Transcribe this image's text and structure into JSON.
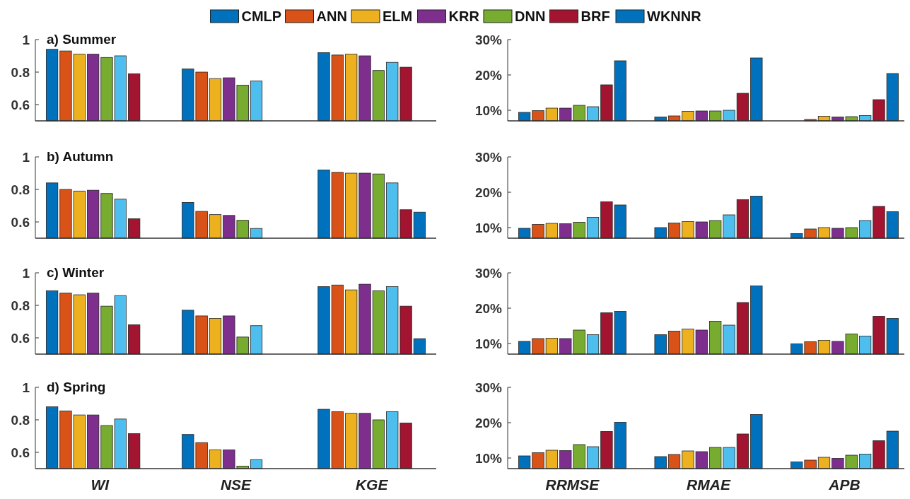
{
  "chart_data": [
    {
      "type": "bar",
      "title": "a) Summer",
      "categories": [
        null,
        null,
        null
      ],
      "ylim": [
        0.5,
        1
      ],
      "yticks": [
        0.6,
        0.8,
        1
      ],
      "legend": "top",
      "series": [
        {
          "name": "CMLP",
          "color": "#0072bd",
          "values": [
            0.94,
            0.82,
            0.92
          ]
        },
        {
          "name": "ANN",
          "color": "#d95319",
          "values": [
            0.93,
            0.8,
            0.905
          ]
        },
        {
          "name": "ELM",
          "color": "#edb120",
          "values": [
            0.91,
            0.76,
            0.91
          ]
        },
        {
          "name": "KRR",
          "color": "#7e2f8e",
          "values": [
            0.91,
            0.765,
            0.9
          ]
        },
        {
          "name": "DNN",
          "color": "#77ac30",
          "values": [
            0.89,
            0.72,
            0.81
          ]
        },
        {
          "color": "#4dbeee",
          "values": [
            0.9,
            0.745,
            0.86
          ]
        },
        {
          "name": "BRF",
          "color": "#a2142f",
          "values": [
            0.79,
            null,
            0.83
          ]
        },
        {
          "name": "WKNNR",
          "color": "#0072bd",
          "values": [
            null,
            null,
            null
          ]
        }
      ]
    },
    {
      "type": "bar",
      "categories": [
        null,
        null,
        null
      ],
      "ylim": [
        7,
        30
      ],
      "yticks": [
        {
          "value": 10,
          "label": "10%"
        },
        {
          "value": 20,
          "label": "20%"
        },
        {
          "value": 30,
          "label": "30%"
        }
      ],
      "series": [
        {
          "color": "#0072bd",
          "values": [
            9.4,
            8.1,
            null
          ]
        },
        {
          "color": "#d95319",
          "values": [
            9.9,
            8.4,
            7.4
          ]
        },
        {
          "color": "#edb120",
          "values": [
            10.6,
            9.7,
            8.3
          ]
        },
        {
          "color": "#7e2f8e",
          "values": [
            10.6,
            9.8,
            8.1
          ]
        },
        {
          "color": "#77ac30",
          "values": [
            11.4,
            9.8,
            8.2
          ]
        },
        {
          "color": "#4dbeee",
          "values": [
            11.0,
            10.0,
            8.5
          ]
        },
        {
          "color": "#a2142f",
          "values": [
            17.2,
            14.8,
            13.0
          ]
        },
        {
          "color": "#0072bd",
          "values": [
            24.0,
            24.8,
            20.4
          ]
        }
      ]
    },
    {
      "type": "bar",
      "title": "b) Autumn",
      "categories": [
        null,
        null,
        null
      ],
      "ylim": [
        0.5,
        1
      ],
      "yticks": [
        0.6,
        0.8,
        1
      ],
      "series": [
        {
          "color": "#0072bd",
          "values": [
            0.84,
            0.72,
            0.92
          ]
        },
        {
          "color": "#d95319",
          "values": [
            0.8,
            0.665,
            0.905
          ]
        },
        {
          "color": "#edb120",
          "values": [
            0.79,
            0.645,
            0.9
          ]
        },
        {
          "color": "#7e2f8e",
          "values": [
            0.795,
            0.64,
            0.9
          ]
        },
        {
          "color": "#77ac30",
          "values": [
            0.775,
            0.61,
            0.895
          ]
        },
        {
          "color": "#4dbeee",
          "values": [
            0.74,
            0.56,
            0.84
          ]
        },
        {
          "color": "#a2142f",
          "values": [
            0.62,
            null,
            0.675
          ]
        },
        {
          "color": "#0072bd",
          "values": [
            null,
            null,
            0.66
          ]
        }
      ]
    },
    {
      "type": "bar",
      "categories": [
        null,
        null,
        null
      ],
      "ylim": [
        7,
        30
      ],
      "yticks": [
        {
          "value": 10,
          "label": "10%"
        },
        {
          "value": 20,
          "label": "20%"
        },
        {
          "value": 30,
          "label": "30%"
        }
      ],
      "series": [
        {
          "color": "#0072bd",
          "values": [
            9.8,
            10.0,
            8.3
          ]
        },
        {
          "color": "#d95319",
          "values": [
            10.9,
            11.3,
            9.6
          ]
        },
        {
          "color": "#edb120",
          "values": [
            11.2,
            11.7,
            10.0
          ]
        },
        {
          "color": "#7e2f8e",
          "values": [
            11.1,
            11.6,
            9.8
          ]
        },
        {
          "color": "#77ac30",
          "values": [
            11.5,
            12.0,
            10.0
          ]
        },
        {
          "color": "#4dbeee",
          "values": [
            12.9,
            13.6,
            12.0
          ]
        },
        {
          "color": "#a2142f",
          "values": [
            17.3,
            17.9,
            16.0
          ]
        },
        {
          "color": "#0072bd",
          "values": [
            16.4,
            18.9,
            14.5
          ]
        }
      ]
    },
    {
      "type": "bar",
      "title": "c) Winter",
      "categories": [
        null,
        null,
        null
      ],
      "ylim": [
        0.5,
        1
      ],
      "yticks": [
        0.6,
        0.8,
        1
      ],
      "series": [
        {
          "color": "#0072bd",
          "values": [
            0.89,
            0.77,
            0.915
          ]
        },
        {
          "color": "#d95319",
          "values": [
            0.875,
            0.735,
            0.925
          ]
        },
        {
          "color": "#edb120",
          "values": [
            0.865,
            0.72,
            0.895
          ]
        },
        {
          "color": "#7e2f8e",
          "values": [
            0.875,
            0.735,
            0.93
          ]
        },
        {
          "color": "#77ac30",
          "values": [
            0.795,
            0.605,
            0.89
          ]
        },
        {
          "color": "#4dbeee",
          "values": [
            0.86,
            0.675,
            0.915
          ]
        },
        {
          "color": "#a2142f",
          "values": [
            0.68,
            null,
            0.795
          ]
        },
        {
          "color": "#0072bd",
          "values": [
            null,
            null,
            0.595
          ]
        }
      ]
    },
    {
      "type": "bar",
      "categories": [
        null,
        null,
        null
      ],
      "ylim": [
        7,
        30
      ],
      "yticks": [
        {
          "value": 10,
          "label": "10%"
        },
        {
          "value": 20,
          "label": "20%"
        },
        {
          "value": 30,
          "label": "30%"
        }
      ],
      "series": [
        {
          "color": "#0072bd",
          "values": [
            10.6,
            12.5,
            9.9
          ]
        },
        {
          "color": "#d95319",
          "values": [
            11.4,
            13.5,
            10.5
          ]
        },
        {
          "color": "#edb120",
          "values": [
            11.5,
            14.1,
            10.9
          ]
        },
        {
          "color": "#7e2f8e",
          "values": [
            11.4,
            13.8,
            10.6
          ]
        },
        {
          "color": "#77ac30",
          "values": [
            13.8,
            16.3,
            12.7
          ]
        },
        {
          "color": "#4dbeee",
          "values": [
            12.5,
            15.2,
            12.1
          ]
        },
        {
          "color": "#a2142f",
          "values": [
            18.7,
            21.6,
            17.7
          ]
        },
        {
          "color": "#0072bd",
          "values": [
            19.1,
            26.3,
            17.1
          ]
        }
      ]
    },
    {
      "type": "bar",
      "title": "d) Spring",
      "categories": [
        "WI",
        "NSE",
        "KGE"
      ],
      "ylim": [
        0.5,
        1
      ],
      "yticks": [
        0.6,
        0.8,
        1
      ],
      "series": [
        {
          "color": "#0072bd",
          "values": [
            0.88,
            0.71,
            0.865
          ]
        },
        {
          "color": "#d95319",
          "values": [
            0.855,
            0.66,
            0.85
          ]
        },
        {
          "color": "#edb120",
          "values": [
            0.83,
            0.615,
            0.84
          ]
        },
        {
          "color": "#7e2f8e",
          "values": [
            0.83,
            0.615,
            0.84
          ]
        },
        {
          "color": "#77ac30",
          "values": [
            0.765,
            0.515,
            0.8
          ]
        },
        {
          "color": "#4dbeee",
          "values": [
            0.805,
            0.555,
            0.85
          ]
        },
        {
          "color": "#a2142f",
          "values": [
            0.715,
            null,
            0.78
          ]
        },
        {
          "values": [
            null,
            null,
            null
          ]
        }
      ]
    },
    {
      "type": "bar",
      "categories": [
        "RRMSE",
        "RMAE",
        "APB"
      ],
      "ylim": [
        7,
        30
      ],
      "yticks": [
        {
          "value": 10,
          "label": "10%"
        },
        {
          "value": 20,
          "label": "20%"
        },
        {
          "value": 30,
          "label": "30%"
        }
      ],
      "series": [
        {
          "color": "#0072bd",
          "values": [
            10.6,
            10.4,
            8.9
          ]
        },
        {
          "color": "#d95319",
          "values": [
            11.5,
            11.0,
            9.4
          ]
        },
        {
          "color": "#edb120",
          "values": [
            12.2,
            12.0,
            10.2
          ]
        },
        {
          "color": "#7e2f8e",
          "values": [
            12.1,
            11.8,
            9.9
          ]
        },
        {
          "color": "#77ac30",
          "values": [
            13.8,
            13.0,
            10.8
          ]
        },
        {
          "color": "#4dbeee",
          "values": [
            13.2,
            13.0,
            11.1
          ]
        },
        {
          "color": "#a2142f",
          "values": [
            17.5,
            16.8,
            14.9
          ]
        },
        {
          "color": "#0072bd",
          "values": [
            20.1,
            22.3,
            17.6
          ]
        }
      ]
    }
  ]
}
